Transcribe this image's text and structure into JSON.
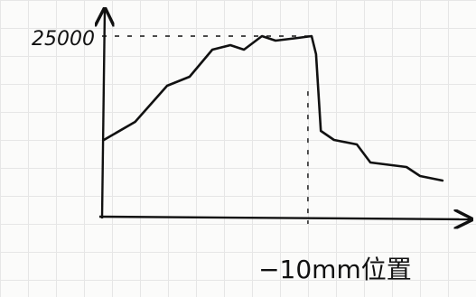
{
  "chart_data": {
    "type": "line",
    "x": [
      0.5,
      9,
      17.7,
      23.8,
      30,
      34.9,
      38.6,
      43.5,
      47.2,
      53.3,
      57,
      58.2,
      59.5,
      63.1,
      69.3,
      73,
      82.8,
      86.5,
      92.6
    ],
    "values": [
      10625,
      13125,
      18125,
      19375,
      23125,
      23750,
      23125,
      25000,
      24375,
      24750,
      25000,
      22500,
      11875,
      10625,
      10000,
      7500,
      6875,
      5625,
      5000
    ],
    "color": "#111111",
    "xlim": [
      0,
      100
    ],
    "ylim": [
      0,
      28000
    ],
    "yticks": [
      25000
    ],
    "annotations": [
      {
        "text": "−10mm位置",
        "x": 56
      }
    ]
  }
}
